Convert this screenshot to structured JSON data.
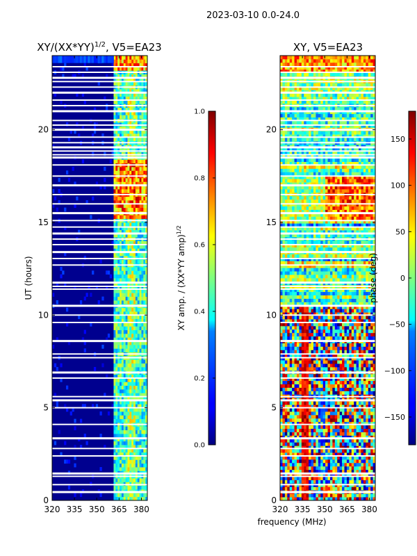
{
  "figure": {
    "suptitle": "2023-03-10 0.0-24.0",
    "shared_xlabel": "frequency (MHz)"
  },
  "chart_data": [
    {
      "type": "heatmap",
      "title_main": "XY/(XX*YY)",
      "title_sup": "1/2",
      "title_rest": ", V5=EA23",
      "ylabel": "UT (hours)",
      "xlim": [
        320,
        384
      ],
      "ylim": [
        0,
        24
      ],
      "xticks": [
        320,
        335,
        350,
        365,
        380
      ],
      "yticks": [
        0,
        5,
        10,
        15,
        20
      ],
      "colorbar": {
        "label_main": "XY amp. / (XX*YY amp)",
        "label_sup": "1/2",
        "range": [
          0.0,
          1.0
        ],
        "ticks": [
          "0.0",
          "0.2",
          "0.4",
          "0.6",
          "0.8",
          "1.0"
        ]
      }
    },
    {
      "type": "heatmap",
      "title": "XY, V5=EA23",
      "xlim": [
        320,
        384
      ],
      "ylim": [
        0,
        24
      ],
      "xticks": [
        320,
        335,
        350,
        365,
        380
      ],
      "yticks": [
        0,
        5,
        10,
        15,
        20
      ],
      "colorbar": {
        "label": "phase (deg)",
        "range": [
          -180,
          180
        ],
        "ticks": [
          "150",
          "100",
          "50",
          "0",
          "−50",
          "−100",
          "−150"
        ],
        "tick_values": [
          150,
          100,
          50,
          0,
          -50,
          -100,
          -150
        ]
      }
    }
  ],
  "gaps_hours": [
    0.45,
    0.85,
    1.3,
    1.45,
    2.4,
    2.8,
    3.35,
    4.1,
    5.0,
    5.4,
    5.6,
    6.6,
    6.9,
    7.7,
    7.9,
    8.6,
    9.6,
    10.0,
    10.5,
    11.4,
    11.55,
    11.75,
    12.7,
    13.05,
    13.4,
    13.8,
    14.1,
    14.4,
    14.75,
    15.1,
    15.5,
    16.0,
    16.5,
    17.0,
    17.5,
    18.1,
    18.5,
    18.65,
    18.85,
    19.05,
    19.3,
    19.6,
    20.0,
    20.25,
    20.5,
    21.0,
    21.3,
    21.6,
    22.0,
    22.3,
    22.6,
    22.8,
    23.1,
    23.4
  ]
}
